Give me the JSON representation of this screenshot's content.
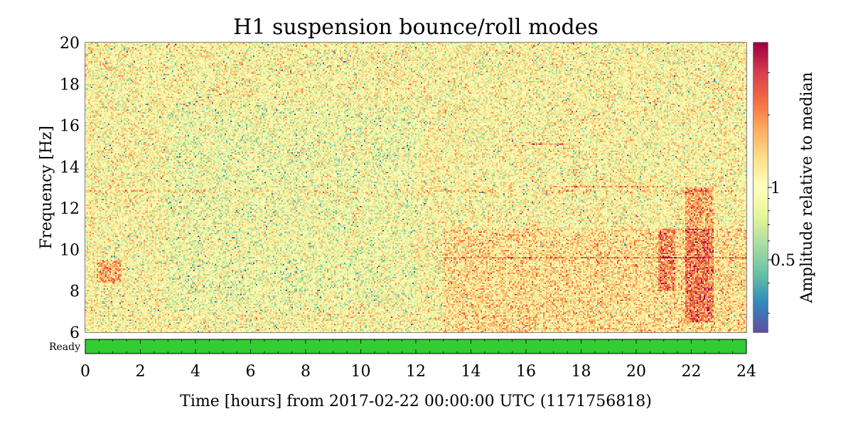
{
  "chart_data": {
    "type": "heatmap",
    "title": "H1 suspension bounce/roll modes",
    "xlabel": "Time [hours] from 2017-02-22 00:00:00 UTC (1171756818)",
    "ylabel": "Frequency [Hz]",
    "xlim": [
      0,
      24
    ],
    "ylim": [
      6,
      20
    ],
    "x_ticks": [
      "0",
      "2",
      "4",
      "6",
      "8",
      "10",
      "12",
      "14",
      "16",
      "18",
      "20",
      "22",
      "24"
    ],
    "y_ticks": [
      "6",
      "8",
      "10",
      "12",
      "14",
      "16",
      "18",
      "20"
    ],
    "grid": false,
    "colormap": "Spectral_r",
    "colorbar": {
      "label": "Amplitude relative to median",
      "scale": "log",
      "ticks": [
        "0.5",
        "1"
      ],
      "range": [
        0.25,
        4
      ]
    },
    "state_segments": [
      {
        "name": "Ready",
        "start": 0,
        "end": 24,
        "color": "#33cc33"
      }
    ],
    "features": [
      {
        "desc": "elevated band",
        "t": [
          0.4,
          1.3
        ],
        "f": [
          8.4,
          9.5
        ],
        "level": 2.4
      },
      {
        "desc": "line",
        "t": [
          0,
          24
        ],
        "f": [
          12.8,
          12.8
        ],
        "level": 1.6
      },
      {
        "desc": "line",
        "t": [
          17,
          21
        ],
        "f": [
          13.0,
          13.1
        ],
        "level": 2.0
      },
      {
        "desc": "line",
        "t": [
          13,
          24
        ],
        "f": [
          9.6,
          9.6
        ],
        "level": 1.6
      },
      {
        "desc": "line",
        "t": [
          16.2,
          17.5
        ],
        "f": [
          15.1,
          15.1
        ],
        "level": 2.2
      },
      {
        "desc": "burst",
        "t": [
          21.8,
          22.8
        ],
        "f": [
          6.5,
          13.0
        ],
        "level": 2.6
      },
      {
        "desc": "burst",
        "t": [
          20.8,
          21.4
        ],
        "f": [
          8.0,
          11.0
        ],
        "level": 2.2
      },
      {
        "desc": "diffuse excess",
        "t": [
          13,
          24
        ],
        "f": [
          6,
          11
        ],
        "level": 1.5
      },
      {
        "desc": "diffuse deficit",
        "t": [
          3,
          12
        ],
        "f": [
          7,
          17
        ],
        "level": 0.8
      }
    ]
  }
}
